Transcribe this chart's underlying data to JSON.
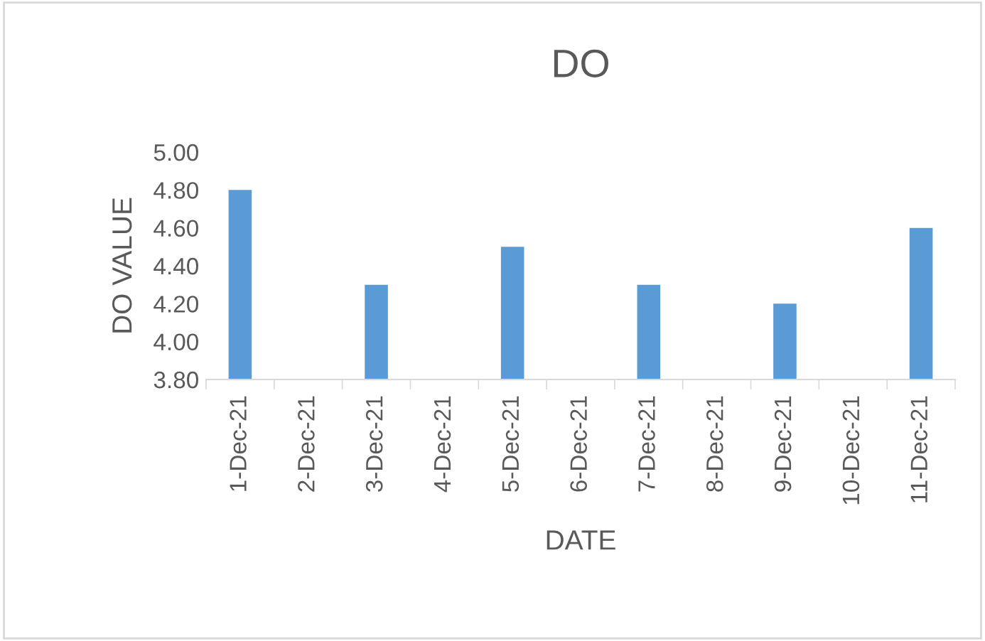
{
  "chart_data": {
    "type": "bar",
    "title": "DO",
    "xlabel": "DATE",
    "ylabel": "DO VALUE",
    "categories": [
      "1-Dec-21",
      "2-Dec-21",
      "3-Dec-21",
      "4-Dec-21",
      "5-Dec-21",
      "6-Dec-21",
      "7-Dec-21",
      "8-Dec-21",
      "9-Dec-21",
      "10-Dec-21",
      "11-Dec-21"
    ],
    "values": [
      4.8,
      null,
      4.3,
      null,
      4.5,
      null,
      4.3,
      null,
      4.2,
      null,
      4.6
    ],
    "color": "#5b9bd5",
    "ylim": [
      3.8,
      5.0
    ],
    "yticks": [
      {
        "value": 3.8,
        "label": "3.80"
      },
      {
        "value": 4.0,
        "label": "4.00"
      },
      {
        "value": 4.2,
        "label": "4.20"
      },
      {
        "value": 4.4,
        "label": "4.40"
      },
      {
        "value": 4.6,
        "label": "4.60"
      },
      {
        "value": 4.8,
        "label": "4.80"
      },
      {
        "value": 5.0,
        "label": "5.00"
      }
    ],
    "grid": false,
    "legend": false
  }
}
